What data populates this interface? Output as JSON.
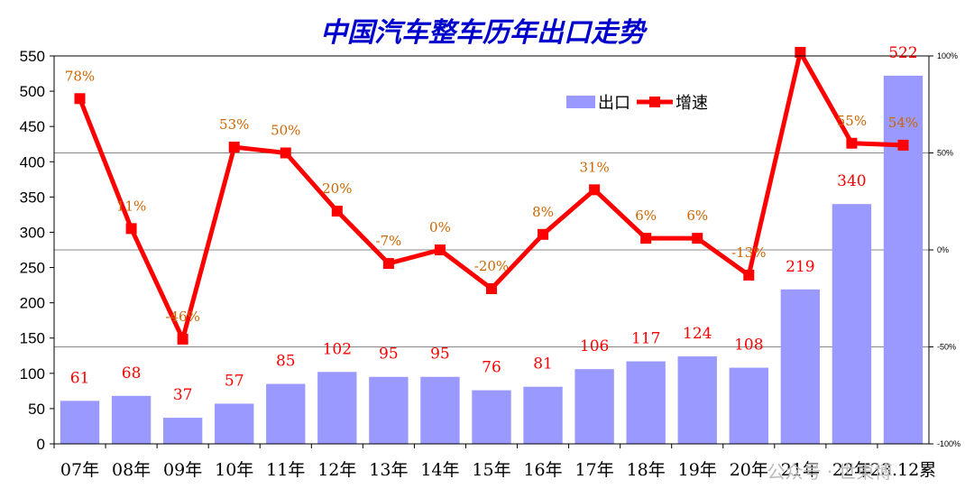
{
  "chart_data": {
    "type": "bar",
    "title": "中国汽车整车历年出口走势",
    "categories": [
      "07年",
      "08年",
      "09年",
      "10年",
      "11年",
      "12年",
      "13年",
      "14年",
      "15年",
      "16年",
      "17年",
      "18年",
      "19年",
      "20年",
      "21年",
      "22年",
      "23.12累"
    ],
    "series": [
      {
        "name": "出口",
        "type": "bar",
        "axis": "left",
        "color": "#9999ff",
        "values": [
          61,
          68,
          37,
          57,
          85,
          102,
          95,
          95,
          76,
          81,
          106,
          117,
          124,
          108,
          219,
          340,
          522
        ],
        "labels": [
          "61",
          "68",
          "37",
          "57",
          "85",
          "102",
          "95",
          "95",
          "76",
          "81",
          "106",
          "117",
          "124",
          "108",
          "219",
          "340",
          "522"
        ]
      },
      {
        "name": "增速",
        "type": "line",
        "axis": "right",
        "color": "#ff0000",
        "values": [
          78,
          11,
          -46,
          53,
          50,
          20,
          -7,
          0,
          -20,
          8,
          31,
          6,
          6,
          -13,
          102,
          55,
          54
        ],
        "labels": [
          "78%",
          "11%",
          "-46%",
          "53%",
          "50%",
          "20%",
          "-7%",
          "0%",
          "-20%",
          "8%",
          "31%",
          "6%",
          "6%",
          "-13%",
          "",
          "55%",
          "54%"
        ]
      }
    ],
    "y_axis": {
      "min": 0,
      "max": 550,
      "ticks": [
        "0",
        "50",
        "100",
        "150",
        "200",
        "250",
        "300",
        "350",
        "400",
        "450",
        "500",
        "550"
      ]
    },
    "y2_axis": {
      "min": -100,
      "max": 100,
      "ticks": [
        "-100%",
        "-50%",
        "0%",
        "50%",
        "100%"
      ],
      "tick_values": [
        -100,
        -50,
        0,
        50,
        100
      ]
    },
    "legend": {
      "placement": "top-right-inside"
    },
    "watermark": "公众号 · 世東博"
  }
}
